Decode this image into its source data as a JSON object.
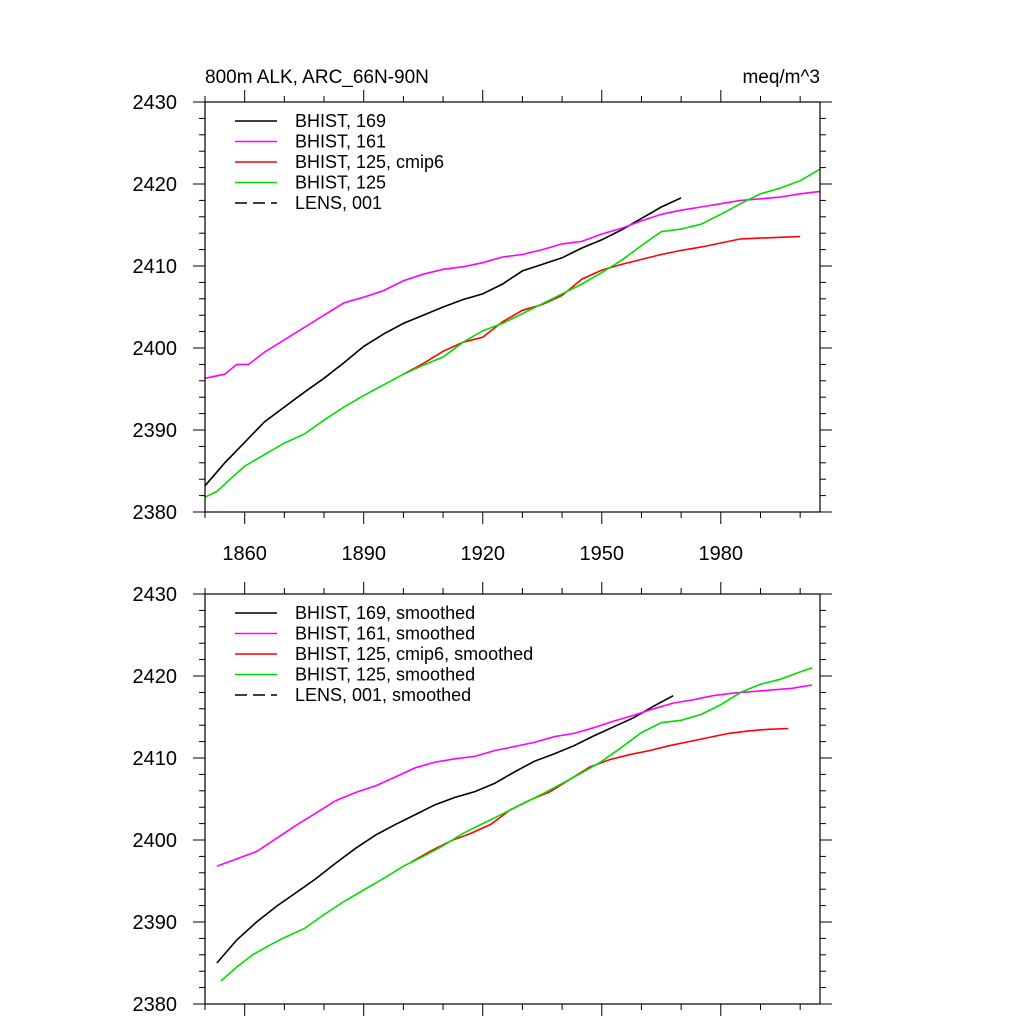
{
  "figure": {
    "title_left": "800m ALK, ARC_66N-90N",
    "title_right": "meq/m^3"
  },
  "chart_data": [
    {
      "type": "line",
      "panel": "top",
      "title": "800m ALK, ARC_66N-90N",
      "units": "meq/m^3",
      "xlim": [
        1850,
        2005
      ],
      "ylim": [
        2380,
        2430
      ],
      "xticks": [
        1860,
        1890,
        1920,
        1950,
        1980
      ],
      "yticks": [
        2380,
        2390,
        2400,
        2410,
        2420,
        2430
      ],
      "show_xtick_labels": true,
      "grid": false,
      "legend_position": "top-left",
      "series": [
        {
          "name": "BHIST, 169",
          "color": "#000000",
          "dash": "solid",
          "points": [
            [
              1850,
              2383.2
            ],
            [
              1855,
              2386.0
            ],
            [
              1860,
              2388.5
            ],
            [
              1865,
              2391.0
            ],
            [
              1870,
              2392.8
            ],
            [
              1875,
              2394.6
            ],
            [
              1880,
              2396.3
            ],
            [
              1885,
              2398.2
            ],
            [
              1890,
              2400.2
            ],
            [
              1895,
              2401.7
            ],
            [
              1900,
              2403.0
            ],
            [
              1905,
              2404.0
            ],
            [
              1910,
              2405.0
            ],
            [
              1915,
              2405.9
            ],
            [
              1920,
              2406.6
            ],
            [
              1925,
              2407.8
            ],
            [
              1930,
              2409.4
            ],
            [
              1935,
              2410.2
            ],
            [
              1940,
              2411.0
            ],
            [
              1945,
              2412.2
            ],
            [
              1950,
              2413.2
            ],
            [
              1955,
              2414.4
            ],
            [
              1960,
              2415.8
            ],
            [
              1965,
              2417.2
            ],
            [
              1970,
              2418.3
            ]
          ]
        },
        {
          "name": "BHIST, 161",
          "color": "#ff00ff",
          "dash": "solid",
          "points": [
            [
              1850,
              2396.3
            ],
            [
              1855,
              2396.8
            ],
            [
              1858,
              2398.0
            ],
            [
              1861,
              2398.0
            ],
            [
              1865,
              2399.5
            ],
            [
              1870,
              2401.0
            ],
            [
              1875,
              2402.5
            ],
            [
              1880,
              2404.0
            ],
            [
              1885,
              2405.5
            ],
            [
              1890,
              2406.2
            ],
            [
              1895,
              2407.0
            ],
            [
              1900,
              2408.2
            ],
            [
              1905,
              2409.0
            ],
            [
              1910,
              2409.6
            ],
            [
              1915,
              2409.9
            ],
            [
              1920,
              2410.4
            ],
            [
              1925,
              2411.1
            ],
            [
              1930,
              2411.4
            ],
            [
              1935,
              2412.0
            ],
            [
              1940,
              2412.7
            ],
            [
              1945,
              2413.0
            ],
            [
              1950,
              2413.9
            ],
            [
              1955,
              2414.6
            ],
            [
              1960,
              2415.5
            ],
            [
              1965,
              2416.3
            ],
            [
              1970,
              2416.8
            ],
            [
              1975,
              2417.2
            ],
            [
              1980,
              2417.6
            ],
            [
              1985,
              2418.0
            ],
            [
              1990,
              2418.2
            ],
            [
              1995,
              2418.4
            ],
            [
              2000,
              2418.8
            ],
            [
              2005,
              2419.1
            ]
          ]
        },
        {
          "name": "BHIST, 125, cmip6",
          "color": "#ff0000",
          "dash": "solid",
          "points": [
            [
              1900,
              2396.8
            ],
            [
              1905,
              2398.1
            ],
            [
              1910,
              2399.6
            ],
            [
              1915,
              2400.7
            ],
            [
              1920,
              2401.3
            ],
            [
              1925,
              2403.2
            ],
            [
              1930,
              2404.6
            ],
            [
              1935,
              2405.3
            ],
            [
              1940,
              2406.4
            ],
            [
              1945,
              2408.4
            ],
            [
              1950,
              2409.5
            ],
            [
              1955,
              2410.2
            ],
            [
              1960,
              2410.8
            ],
            [
              1965,
              2411.4
            ],
            [
              1970,
              2411.9
            ],
            [
              1975,
              2412.3
            ],
            [
              1980,
              2412.8
            ],
            [
              1985,
              2413.3
            ],
            [
              1990,
              2413.4
            ],
            [
              1995,
              2413.5
            ],
            [
              2000,
              2413.6
            ]
          ]
        },
        {
          "name": "BHIST, 125",
          "color": "#00dd00",
          "dash": "solid",
          "points": [
            [
              1850,
              2381.8
            ],
            [
              1853,
              2382.5
            ],
            [
              1857,
              2384.3
            ],
            [
              1860,
              2385.6
            ],
            [
              1865,
              2387.0
            ],
            [
              1870,
              2388.4
            ],
            [
              1875,
              2389.5
            ],
            [
              1880,
              2391.2
            ],
            [
              1885,
              2392.8
            ],
            [
              1890,
              2394.2
            ],
            [
              1895,
              2395.5
            ],
            [
              1900,
              2396.8
            ],
            [
              1905,
              2397.9
            ],
            [
              1910,
              2398.9
            ],
            [
              1915,
              2400.7
            ],
            [
              1920,
              2402.1
            ],
            [
              1925,
              2403.0
            ],
            [
              1930,
              2404.2
            ],
            [
              1935,
              2405.4
            ],
            [
              1940,
              2406.6
            ],
            [
              1945,
              2407.8
            ],
            [
              1950,
              2409.2
            ],
            [
              1955,
              2410.7
            ],
            [
              1960,
              2412.5
            ],
            [
              1965,
              2414.2
            ],
            [
              1970,
              2414.5
            ],
            [
              1975,
              2415.1
            ],
            [
              1980,
              2416.3
            ],
            [
              1985,
              2417.6
            ],
            [
              1990,
              2418.8
            ],
            [
              1995,
              2419.5
            ],
            [
              2000,
              2420.4
            ],
            [
              2005,
              2421.8
            ]
          ]
        },
        {
          "name": "LENS, 001",
          "color": "#000000",
          "dash": "dashed",
          "points": []
        }
      ]
    },
    {
      "type": "line",
      "panel": "bottom",
      "xlim": [
        1850,
        2005
      ],
      "ylim": [
        2380,
        2430
      ],
      "xticks": [
        1860,
        1890,
        1920,
        1950,
        1980
      ],
      "yticks": [
        2380,
        2390,
        2400,
        2410,
        2420,
        2430
      ],
      "show_xtick_labels": false,
      "grid": false,
      "legend_position": "top-left",
      "series": [
        {
          "name": "BHIST, 169, smoothed",
          "color": "#000000",
          "dash": "solid",
          "points": [
            [
              1853,
              2385.0
            ],
            [
              1858,
              2387.8
            ],
            [
              1863,
              2390.0
            ],
            [
              1868,
              2391.9
            ],
            [
              1873,
              2393.6
            ],
            [
              1878,
              2395.3
            ],
            [
              1883,
              2397.2
            ],
            [
              1888,
              2399.0
            ],
            [
              1893,
              2400.6
            ],
            [
              1898,
              2401.9
            ],
            [
              1903,
              2403.1
            ],
            [
              1908,
              2404.3
            ],
            [
              1913,
              2405.2
            ],
            [
              1918,
              2405.9
            ],
            [
              1923,
              2406.9
            ],
            [
              1928,
              2408.3
            ],
            [
              1933,
              2409.6
            ],
            [
              1938,
              2410.5
            ],
            [
              1943,
              2411.5
            ],
            [
              1948,
              2412.7
            ],
            [
              1953,
              2413.8
            ],
            [
              1958,
              2414.9
            ],
            [
              1963,
              2416.3
            ],
            [
              1968,
              2417.6
            ]
          ]
        },
        {
          "name": "BHIST, 161, smoothed",
          "color": "#ff00ff",
          "dash": "solid",
          "points": [
            [
              1853,
              2396.8
            ],
            [
              1858,
              2397.7
            ],
            [
              1863,
              2398.6
            ],
            [
              1868,
              2400.2
            ],
            [
              1873,
              2401.8
            ],
            [
              1878,
              2403.3
            ],
            [
              1883,
              2404.8
            ],
            [
              1888,
              2405.8
            ],
            [
              1893,
              2406.6
            ],
            [
              1898,
              2407.7
            ],
            [
              1903,
              2408.8
            ],
            [
              1908,
              2409.5
            ],
            [
              1913,
              2409.9
            ],
            [
              1918,
              2410.2
            ],
            [
              1923,
              2410.9
            ],
            [
              1928,
              2411.4
            ],
            [
              1933,
              2411.9
            ],
            [
              1938,
              2412.6
            ],
            [
              1943,
              2413.0
            ],
            [
              1948,
              2413.7
            ],
            [
              1953,
              2414.5
            ],
            [
              1958,
              2415.2
            ],
            [
              1963,
              2416.0
            ],
            [
              1968,
              2416.7
            ],
            [
              1973,
              2417.1
            ],
            [
              1978,
              2417.6
            ],
            [
              1983,
              2417.9
            ],
            [
              1988,
              2418.1
            ],
            [
              1993,
              2418.3
            ],
            [
              1998,
              2418.5
            ],
            [
              2003,
              2418.9
            ]
          ]
        },
        {
          "name": "BHIST, 125, cmip6, smoothed",
          "color": "#ff0000",
          "dash": "solid",
          "points": [
            [
              1902,
              2397.3
            ],
            [
              1907,
              2398.7
            ],
            [
              1912,
              2399.9
            ],
            [
              1917,
              2400.8
            ],
            [
              1922,
              2401.9
            ],
            [
              1927,
              2403.7
            ],
            [
              1932,
              2404.9
            ],
            [
              1937,
              2405.9
            ],
            [
              1942,
              2407.4
            ],
            [
              1947,
              2408.9
            ],
            [
              1952,
              2409.8
            ],
            [
              1957,
              2410.4
            ],
            [
              1962,
              2410.9
            ],
            [
              1967,
              2411.5
            ],
            [
              1972,
              2412.0
            ],
            [
              1977,
              2412.5
            ],
            [
              1982,
              2413.0
            ],
            [
              1987,
              2413.3
            ],
            [
              1992,
              2413.5
            ],
            [
              1997,
              2413.6
            ]
          ]
        },
        {
          "name": "BHIST, 125, smoothed",
          "color": "#00dd00",
          "dash": "solid",
          "points": [
            [
              1854,
              2382.8
            ],
            [
              1858,
              2384.5
            ],
            [
              1862,
              2386.0
            ],
            [
              1866,
              2387.1
            ],
            [
              1870,
              2388.1
            ],
            [
              1875,
              2389.2
            ],
            [
              1880,
              2390.9
            ],
            [
              1885,
              2392.5
            ],
            [
              1890,
              2393.9
            ],
            [
              1895,
              2395.3
            ],
            [
              1900,
              2396.8
            ],
            [
              1905,
              2398.0
            ],
            [
              1910,
              2399.3
            ],
            [
              1915,
              2400.8
            ],
            [
              1920,
              2402.0
            ],
            [
              1925,
              2403.2
            ],
            [
              1930,
              2404.4
            ],
            [
              1935,
              2405.6
            ],
            [
              1940,
              2406.9
            ],
            [
              1945,
              2408.2
            ],
            [
              1950,
              2409.6
            ],
            [
              1955,
              2411.3
            ],
            [
              1960,
              2413.1
            ],
            [
              1965,
              2414.3
            ],
            [
              1970,
              2414.6
            ],
            [
              1975,
              2415.3
            ],
            [
              1980,
              2416.5
            ],
            [
              1985,
              2418.0
            ],
            [
              1990,
              2419.0
            ],
            [
              1995,
              2419.6
            ],
            [
              2000,
              2420.5
            ],
            [
              2003,
              2421.0
            ]
          ]
        },
        {
          "name": "LENS, 001, smoothed",
          "color": "#000000",
          "dash": "dashed",
          "points": []
        }
      ]
    }
  ]
}
